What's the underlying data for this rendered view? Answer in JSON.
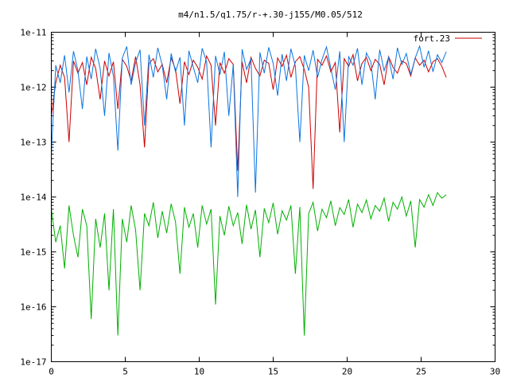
{
  "chart_data": {
    "type": "line",
    "title": "m4/n1.5/q1.75/r-+.30-j155/M0.05/512",
    "xlabel": "",
    "ylabel": "",
    "xlim": [
      0,
      30
    ],
    "ylim": [
      1e-17,
      1e-11
    ],
    "yscale": "log",
    "grid": false,
    "legend_position": "top-right",
    "x_ticks": [
      {
        "value": 0,
        "label": "0"
      },
      {
        "value": 5,
        "label": "5"
      },
      {
        "value": 10,
        "label": "10"
      },
      {
        "value": 15,
        "label": "15"
      },
      {
        "value": 20,
        "label": "20"
      },
      {
        "value": 25,
        "label": "25"
      },
      {
        "value": 30,
        "label": "30"
      }
    ],
    "y_ticks": [
      {
        "value": 1e-11,
        "label": "1e-11"
      },
      {
        "value": 1e-12,
        "label": "1e-12"
      },
      {
        "value": 1e-13,
        "label": "1e-13"
      },
      {
        "value": 1e-14,
        "label": "1e-14"
      },
      {
        "value": 1e-15,
        "label": "1e-15"
      },
      {
        "value": 1e-16,
        "label": "1e-16"
      },
      {
        "value": 1e-17,
        "label": "1e-17"
      }
    ],
    "series": [
      {
        "name": "fort.23",
        "color": "#cc0000",
        "x": [
          0.0,
          0.3,
          0.6,
          0.9,
          1.2,
          1.5,
          1.8,
          2.1,
          2.4,
          2.7,
          3.0,
          3.3,
          3.6,
          3.9,
          4.2,
          4.5,
          4.8,
          5.1,
          5.4,
          5.7,
          6.0,
          6.3,
          6.6,
          6.9,
          7.2,
          7.5,
          7.8,
          8.1,
          8.4,
          8.7,
          9.0,
          9.3,
          9.6,
          9.9,
          10.2,
          10.5,
          10.8,
          11.1,
          11.4,
          11.7,
          12.0,
          12.3,
          12.6,
          12.9,
          13.2,
          13.5,
          13.8,
          14.1,
          14.4,
          14.7,
          15.0,
          15.3,
          15.6,
          15.9,
          16.2,
          16.5,
          16.8,
          17.1,
          17.4,
          17.7,
          18.0,
          18.3,
          18.6,
          18.9,
          19.2,
          19.5,
          19.8,
          20.1,
          20.4,
          20.7,
          21.0,
          21.3,
          21.6,
          21.9,
          22.2,
          22.5,
          22.8,
          23.1,
          23.4,
          23.7,
          24.0,
          24.3,
          24.6,
          24.9,
          25.2,
          25.5,
          25.8,
          26.1,
          26.4,
          26.7
        ],
        "y": [
          3e-13,
          1.2e-12,
          2.5e-12,
          1.5e-12,
          1e-13,
          3e-12,
          1.8e-12,
          2.8e-12,
          1.1e-12,
          3.5e-12,
          2.2e-12,
          6e-13,
          3e-12,
          1.6e-12,
          2.9e-12,
          4e-13,
          3.2e-12,
          2.4e-12,
          1.3e-12,
          3.6e-12,
          1.1e-12,
          8e-14,
          2.7e-12,
          3.3e-12,
          1.9e-12,
          2.6e-12,
          1.2e-12,
          3.4e-12,
          2.1e-12,
          5e-13,
          2.9e-12,
          1.7e-12,
          3.1e-12,
          2.3e-12,
          1.4e-12,
          3.7e-12,
          2.5e-12,
          2e-13,
          2.8e-12,
          1.8e-12,
          3.3e-12,
          2.6e-12,
          3e-14,
          2.9e-12,
          1.2e-12,
          3.5e-12,
          2.2e-12,
          1.6e-12,
          3.1e-12,
          2.7e-12,
          9e-13,
          3.4e-12,
          2.4e-12,
          3.8e-12,
          1.5e-12,
          2.9e-12,
          3.6e-12,
          2.1e-12,
          1e-12,
          1.4e-14,
          3.2e-12,
          2.5e-12,
          3.7e-12,
          1.9e-12,
          2.8e-12,
          1.5e-13,
          3.3e-12,
          2.4e-12,
          3.9e-12,
          1.3e-12,
          2.7e-12,
          3.5e-12,
          2e-12,
          3.2e-12,
          2.6e-12,
          1.1e-12,
          3.6e-12,
          2.3e-12,
          1.8e-12,
          3e-12,
          2.7e-12,
          1.6e-12,
          3.4e-12,
          2.5e-12,
          3.1e-12,
          1.9e-12,
          2.9e-12,
          3.3e-12,
          2.4e-12,
          1.5e-12
        ]
      },
      {
        "color": "#0a75e0",
        "x": [
          0.0,
          0.3,
          0.6,
          0.9,
          1.2,
          1.5,
          1.8,
          2.1,
          2.4,
          2.7,
          3.0,
          3.3,
          3.6,
          3.9,
          4.2,
          4.5,
          4.8,
          5.1,
          5.4,
          5.7,
          6.0,
          6.3,
          6.6,
          6.9,
          7.2,
          7.5,
          7.8,
          8.1,
          8.4,
          8.7,
          9.0,
          9.3,
          9.6,
          9.9,
          10.2,
          10.5,
          10.8,
          11.1,
          11.4,
          11.7,
          12.0,
          12.3,
          12.6,
          12.9,
          13.2,
          13.5,
          13.8,
          14.1,
          14.4,
          14.7,
          15.0,
          15.3,
          15.6,
          15.9,
          16.2,
          16.5,
          16.8,
          17.1,
          17.4,
          17.7,
          18.0,
          18.3,
          18.6,
          18.9,
          19.2,
          19.5,
          19.8,
          20.1,
          20.4,
          20.7,
          21.0,
          21.3,
          21.6,
          21.9,
          22.2,
          22.5,
          22.8,
          23.1,
          23.4,
          23.7,
          24.0,
          24.3,
          24.6,
          24.9,
          25.2,
          25.5,
          25.8,
          26.1,
          26.4,
          26.7
        ],
        "y": [
          6e-14,
          2.5e-12,
          1.2e-12,
          3.8e-12,
          8e-13,
          4.5e-12,
          2e-12,
          4e-13,
          3.6e-12,
          1.4e-12,
          5e-12,
          2.2e-12,
          3e-13,
          4.2e-12,
          1.6e-12,
          7e-14,
          3.4e-12,
          5.5e-12,
          1.1e-12,
          2.8e-12,
          4.8e-12,
          2e-13,
          3.9e-12,
          1.5e-12,
          5.2e-12,
          2.5e-12,
          6e-13,
          4.1e-12,
          1.9e-12,
          3.5e-12,
          2e-13,
          4.6e-12,
          2.3e-12,
          1.2e-12,
          5.1e-12,
          2.9e-12,
          8e-14,
          3.7e-12,
          1.7e-12,
          4.4e-12,
          3e-13,
          2.6e-12,
          1e-14,
          4.9e-12,
          2.1e-12,
          3.3e-12,
          1.2e-14,
          4.3e-12,
          1.8e-12,
          5.3e-12,
          2.7e-12,
          7e-13,
          4e-12,
          1.3e-12,
          5e-12,
          2.4e-12,
          1e-13,
          3.8e-12,
          2e-12,
          4.7e-12,
          1.5e-12,
          3.2e-12,
          5.4e-12,
          2.2e-12,
          9e-13,
          4.5e-12,
          1e-13,
          3.6e-12,
          2.5e-12,
          5.1e-12,
          1.1e-12,
          4.2e-12,
          2.9e-12,
          6e-13,
          4.8e-12,
          2e-12,
          3.5e-12,
          1.4e-12,
          5.2e-12,
          2.6e-12,
          4.1e-12,
          1.7e-12,
          3.4e-12,
          5.6e-12,
          2.3e-12,
          4.6e-12,
          1.9e-12,
          3.9e-12,
          2.8e-12,
          4.4e-12
        ]
      },
      {
        "color": "#00b000",
        "x": [
          0.0,
          0.3,
          0.6,
          0.9,
          1.2,
          1.5,
          1.8,
          2.1,
          2.4,
          2.7,
          3.0,
          3.3,
          3.6,
          3.9,
          4.2,
          4.5,
          4.8,
          5.1,
          5.4,
          5.7,
          6.0,
          6.3,
          6.6,
          6.9,
          7.2,
          7.5,
          7.8,
          8.1,
          8.4,
          8.7,
          9.0,
          9.3,
          9.6,
          9.9,
          10.2,
          10.5,
          10.8,
          11.1,
          11.4,
          11.7,
          12.0,
          12.3,
          12.6,
          12.9,
          13.2,
          13.5,
          13.8,
          14.1,
          14.4,
          14.7,
          15.0,
          15.3,
          15.6,
          15.9,
          16.2,
          16.5,
          16.8,
          17.1,
          17.4,
          17.7,
          18.0,
          18.3,
          18.6,
          18.9,
          19.2,
          19.5,
          19.8,
          20.1,
          20.4,
          20.7,
          21.0,
          21.3,
          21.6,
          21.9,
          22.2,
          22.5,
          22.8,
          23.1,
          23.4,
          23.7,
          24.0,
          24.3,
          24.6,
          24.9,
          25.2,
          25.5,
          25.8,
          26.1,
          26.4,
          26.7
        ],
        "y": [
          6e-15,
          1.5e-15,
          3e-15,
          5e-16,
          7e-15,
          2e-15,
          8e-16,
          6e-15,
          3e-15,
          6e-17,
          4e-15,
          1.2e-15,
          5e-15,
          2e-16,
          6e-15,
          3e-17,
          4e-15,
          1.5e-15,
          7e-15,
          2.5e-15,
          2e-16,
          5e-15,
          3e-15,
          8e-15,
          1.8e-15,
          5.5e-15,
          2.2e-15,
          7.5e-15,
          3.5e-15,
          4e-16,
          6.5e-15,
          2.8e-15,
          5e-15,
          1.2e-15,
          7e-15,
          3.2e-15,
          6e-15,
          1.1e-16,
          4.5e-15,
          2e-15,
          6.8e-15,
          3e-15,
          5.2e-15,
          1.4e-15,
          7.2e-15,
          2.6e-15,
          5.8e-15,
          8e-16,
          6.2e-15,
          3.4e-15,
          7.8e-15,
          2.1e-15,
          5.6e-15,
          3.8e-15,
          7e-15,
          4e-16,
          6.6e-15,
          3e-17,
          5e-15,
          8e-15,
          2.4e-15,
          6e-15,
          4.2e-15,
          8.5e-15,
          3e-15,
          6.4e-15,
          4.8e-15,
          9e-15,
          2.8e-15,
          7.4e-15,
          5.2e-15,
          8.8e-15,
          4e-15,
          7e-15,
          5.5e-15,
          9.5e-15,
          3.6e-15,
          8e-15,
          6e-15,
          1e-14,
          4.5e-15,
          8.5e-15,
          1.2e-15,
          9e-15,
          6.5e-15,
          1.1e-14,
          7e-15,
          1.2e-14,
          9.5e-15,
          1.1e-14
        ]
      }
    ]
  }
}
